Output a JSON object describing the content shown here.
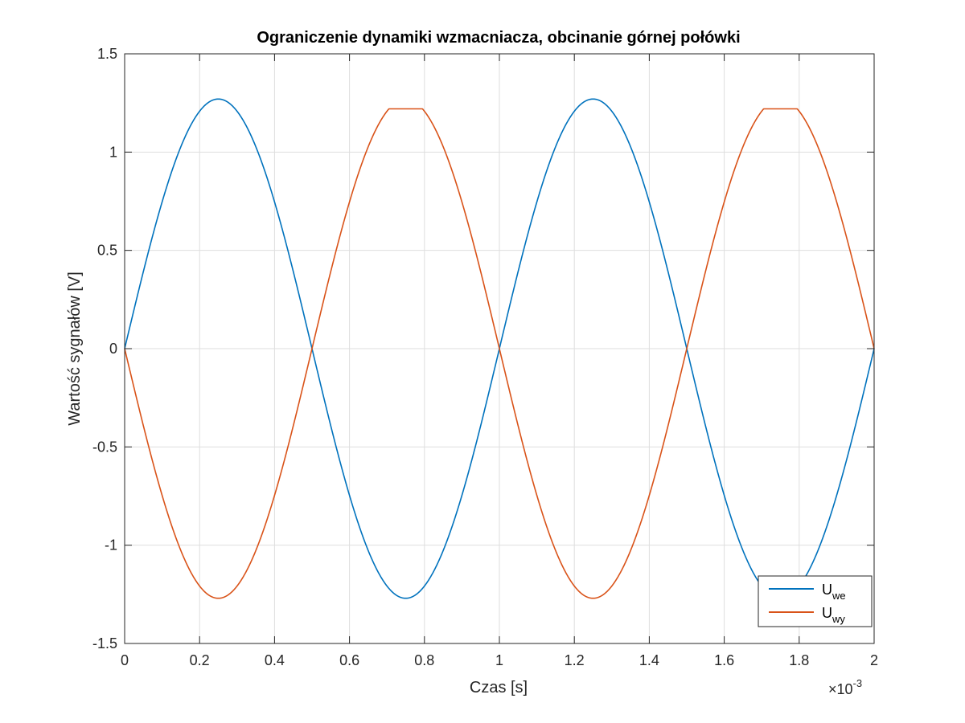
{
  "chart_data": {
    "type": "line",
    "title": "Ograniczenie dynamiki wzmacniacza, obcinanie górnej połówki",
    "xlabel": "Czas [s]",
    "ylabel": "Wartość sygnałów [V]",
    "x_exponent_base": "×10",
    "x_exponent_power": "-3",
    "xlim": [
      0,
      0.002
    ],
    "ylim": [
      -1.5,
      1.5
    ],
    "x_ticks": [
      0,
      0.0002,
      0.0004,
      0.0006,
      0.0008,
      0.001,
      0.0012,
      0.0014,
      0.0016,
      0.0018,
      0.002
    ],
    "x_tick_labels": [
      "0",
      "0.2",
      "0.4",
      "0.6",
      "0.8",
      "1",
      "1.2",
      "1.4",
      "1.6",
      "1.8",
      "2"
    ],
    "y_ticks": [
      -1.5,
      -1,
      -0.5,
      0,
      0.5,
      1,
      1.5
    ],
    "y_tick_labels": [
      "-1.5",
      "-1",
      "-0.5",
      "0",
      "0.5",
      "1",
      "1.5"
    ],
    "grid": true,
    "legend_position": "bottom-right",
    "frequency_hz": 1000,
    "series": [
      {
        "name": "U",
        "subscript": "we",
        "color": "#0072BD",
        "amplitude": 1.27,
        "sign": 1,
        "clip_max": null
      },
      {
        "name": "U",
        "subscript": "wy",
        "color": "#D95319",
        "amplitude": 1.27,
        "sign": -1,
        "clip_max": 1.22
      }
    ]
  }
}
